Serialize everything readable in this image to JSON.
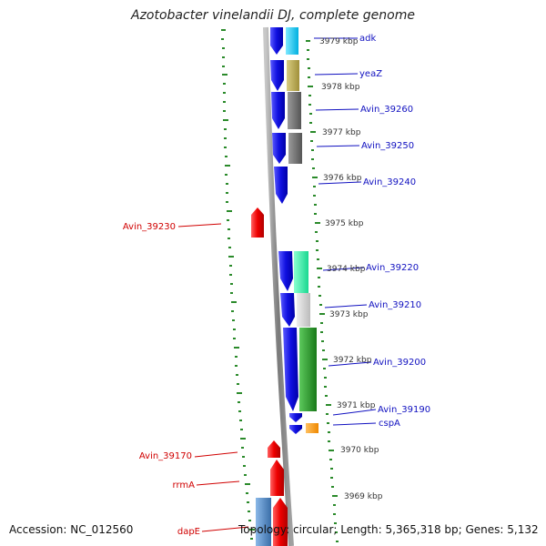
{
  "title": "Azotobacter vinelandii DJ, complete genome",
  "footer": {
    "accession": "Accession: NC_012560",
    "summary": "Topology: circular; Length: 5,365,318 bp; Genes: 5,132"
  },
  "ruler_labels": [
    "3979 kbp",
    "3978 kbp",
    "3977 kbp",
    "3976 kbp",
    "3975 kbp",
    "3974 kbp",
    "3973 kbp",
    "3972 kbp",
    "3971 kbp",
    "3970 kbp",
    "3969 kbp"
  ],
  "gene_labels_right": [
    "adk",
    "yeaZ",
    "Avin_39260",
    "Avin_39250",
    "Avin_39240",
    "Avin_39220",
    "Avin_39210",
    "Avin_39200",
    "Avin_39190",
    "cspA"
  ],
  "gene_labels_left": [
    "Avin_39230",
    "Avin_39170",
    "rrmA",
    "dapE"
  ],
  "colors": {
    "backbone": "#8c8c8c",
    "ticks": "#2a8a2a",
    "forward_gene": "#e8000b",
    "reverse_gene": "#1414e0",
    "right_label": "#1010c0",
    "left_label": "#d00000",
    "ruler_text": "#333333"
  }
}
